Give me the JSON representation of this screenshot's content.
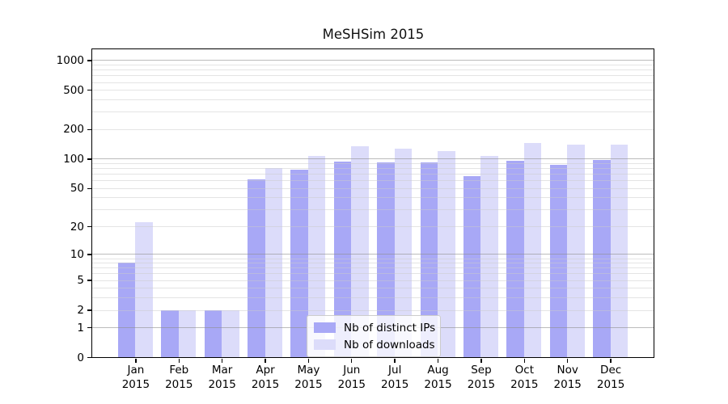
{
  "chart_data": {
    "type": "bar",
    "title": "MeSHSim 2015",
    "xlabel": "",
    "ylabel": "",
    "yscale": "log1p",
    "ylim": [
      0,
      1300
    ],
    "grid": true,
    "y_ticks": [
      0,
      1,
      2,
      5,
      10,
      20,
      50,
      100,
      200,
      500,
      1000
    ],
    "major_grid_values": [
      1,
      10,
      100,
      1000
    ],
    "minor_grid_values": [
      2,
      3,
      4,
      5,
      6,
      7,
      8,
      9,
      20,
      30,
      40,
      50,
      60,
      70,
      80,
      90,
      200,
      300,
      400,
      500,
      600,
      700,
      800,
      900
    ],
    "categories": [
      "Jan",
      "Feb",
      "Mar",
      "Apr",
      "May",
      "Jun",
      "Jul",
      "Aug",
      "Sep",
      "Oct",
      "Nov",
      "Dec"
    ],
    "category_year": "2015",
    "series": [
      {
        "name": "Nb of distinct IPs",
        "color": "#a8a8f6",
        "values": [
          8,
          2,
          2,
          61,
          78,
          93,
          92,
          91,
          66,
          95,
          87,
          98
        ]
      },
      {
        "name": "Nb of downloads",
        "color": "#dcdcfa",
        "values": [
          22,
          2,
          2,
          80,
          107,
          135,
          126,
          120,
          107,
          145,
          138,
          140
        ]
      }
    ],
    "legend": {
      "position": "lower-center",
      "entries": [
        "Nb of distinct IPs",
        "Nb of downloads"
      ]
    }
  },
  "colors": {
    "spine": "#000000",
    "grid_major": "#b9b9bd",
    "grid_minor": "#e6e6e9",
    "text": "#111111",
    "legend_border": "#cccccc"
  }
}
